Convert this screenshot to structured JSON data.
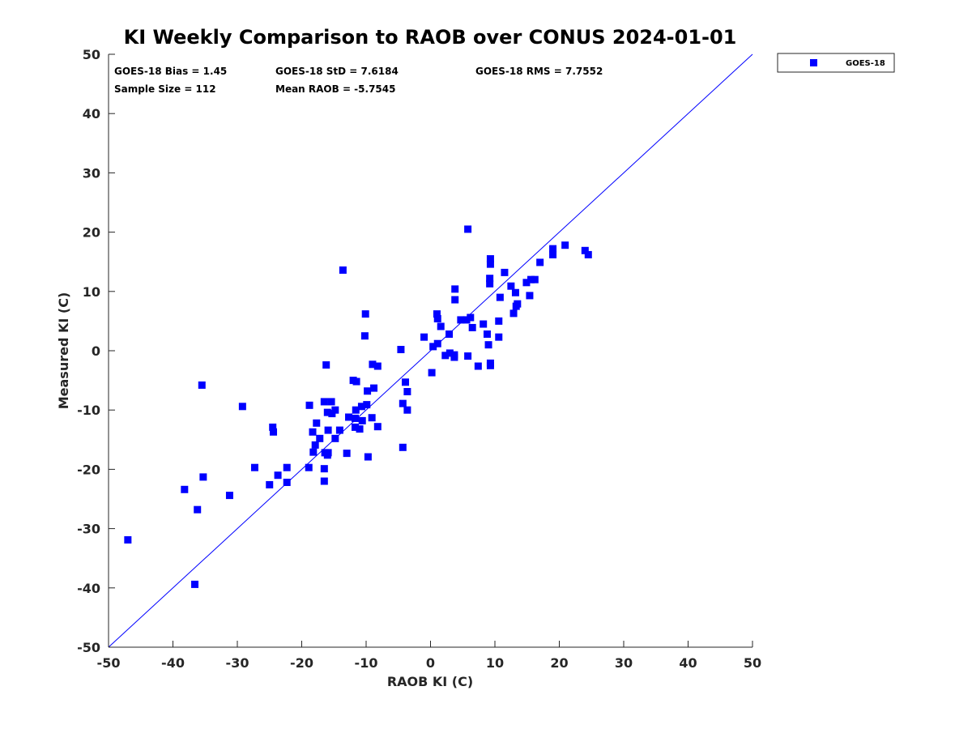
{
  "chart_data": {
    "type": "scatter",
    "title": "KI Weekly Comparison to RAOB over CONUS 2024-01-01",
    "xlabel": "RAOB KI (C)",
    "ylabel": "Measured KI (C)",
    "xlim": [
      -50,
      50
    ],
    "ylim": [
      -50,
      50
    ],
    "xticks": [
      "-50",
      "-40",
      "-30",
      "-20",
      "-10",
      "0",
      "10",
      "20",
      "30",
      "40",
      "50"
    ],
    "yticks": [
      "50",
      "40",
      "30",
      "20",
      "10",
      "0",
      "-10",
      "-20",
      "-30",
      "-40",
      "-50"
    ],
    "grid": false,
    "legend_position": "outside-top-right",
    "stats": {
      "bias": "GOES-18 Bias = 1.45",
      "std": "GOES-18 StD = 7.6184",
      "rms": "GOES-18 RMS = 7.7552",
      "sample": "Sample Size = 112",
      "mean": "Mean RAOB = -5.7545"
    },
    "reference_line": {
      "name": "1:1 line",
      "color": "#0000ff",
      "from": [
        -50,
        -50
      ],
      "to": [
        50,
        50
      ]
    },
    "series": [
      {
        "name": "GOES-18",
        "color": "#0000ff",
        "marker": "square",
        "points": [
          [
            -47,
            -31.9
          ],
          [
            -38.2,
            -23.4
          ],
          [
            -36.2,
            -26.8
          ],
          [
            -36.6,
            -39.4
          ],
          [
            -35.5,
            -5.8
          ],
          [
            -35.3,
            -21.3
          ],
          [
            -31.2,
            -24.4
          ],
          [
            -29.2,
            -9.4
          ],
          [
            -27.3,
            -19.7
          ],
          [
            -25,
            -22.6
          ],
          [
            -24.5,
            -12.9
          ],
          [
            -24.4,
            -13.7
          ],
          [
            -23.7,
            -21
          ],
          [
            -22.3,
            -19.7
          ],
          [
            -22.3,
            -22.2
          ],
          [
            -18.8,
            -9.2
          ],
          [
            -18.9,
            -19.7
          ],
          [
            -18.3,
            -13.7
          ],
          [
            -18.2,
            -17.1
          ],
          [
            -17.9,
            -15.9
          ],
          [
            -17.7,
            -12.2
          ],
          [
            -17.2,
            -14.8
          ],
          [
            -16.5,
            -8.6
          ],
          [
            -16.4,
            -17.2
          ],
          [
            -16.5,
            -19.9
          ],
          [
            -16.5,
            -22
          ],
          [
            -16.2,
            -2.4
          ],
          [
            -16,
            -10.4
          ],
          [
            -15.9,
            -13.4
          ],
          [
            -15.9,
            -17.2
          ],
          [
            -16,
            -17.6
          ],
          [
            -15.4,
            -8.6
          ],
          [
            -15.3,
            -10.6
          ],
          [
            -14.8,
            -10
          ],
          [
            -14.8,
            -14.8
          ],
          [
            -14.1,
            -13.4
          ],
          [
            -13.6,
            13.6
          ],
          [
            -13,
            -17.3
          ],
          [
            -12,
            -5
          ],
          [
            -11.7,
            -11.4
          ],
          [
            -11.7,
            -12.9
          ],
          [
            -11.6,
            -10
          ],
          [
            -11.5,
            -5.2
          ],
          [
            -11,
            -13.2
          ],
          [
            -10.7,
            -9.4
          ],
          [
            -10.6,
            -11.8
          ],
          [
            -10.2,
            2.5
          ],
          [
            -10.1,
            6.2
          ],
          [
            -9.9,
            -9.1
          ],
          [
            -9.8,
            -6.8
          ],
          [
            -9.7,
            -17.9
          ],
          [
            -9.1,
            -11.3
          ],
          [
            -9,
            -2.3
          ],
          [
            -8.8,
            -6.3
          ],
          [
            -8.2,
            -12.8
          ],
          [
            -8.2,
            -2.6
          ],
          [
            -4.6,
            0.2
          ],
          [
            -4.3,
            -8.9
          ],
          [
            -4.3,
            -16.3
          ],
          [
            -3.9,
            -5.3
          ],
          [
            -3.6,
            -6.9
          ],
          [
            -3.6,
            -10
          ],
          [
            -1,
            2.3
          ],
          [
            0.2,
            -3.7
          ],
          [
            0.4,
            0.7
          ],
          [
            1,
            6.2
          ],
          [
            1.1,
            5.4
          ],
          [
            1.1,
            1.2
          ],
          [
            1.6,
            4.1
          ],
          [
            2.3,
            -0.8
          ],
          [
            2.9,
            2.8
          ],
          [
            3,
            -0.4
          ],
          [
            3.7,
            -0.7
          ],
          [
            3.7,
            -1.1
          ],
          [
            3.8,
            10.4
          ],
          [
            3.8,
            8.6
          ],
          [
            4.7,
            5.2
          ],
          [
            5.6,
            5.2
          ],
          [
            5.8,
            20.5
          ],
          [
            5.8,
            -0.9
          ],
          [
            6.2,
            5.6
          ],
          [
            6.5,
            3.9
          ],
          [
            7.4,
            -2.6
          ],
          [
            8.2,
            4.5
          ],
          [
            8.8,
            2.8
          ],
          [
            9,
            1
          ],
          [
            9.2,
            12.2
          ],
          [
            9.2,
            11.3
          ],
          [
            9.3,
            15.5
          ],
          [
            9.3,
            14.6
          ],
          [
            9.3,
            -2.1
          ],
          [
            9.3,
            -2.5
          ],
          [
            10.6,
            2.3
          ],
          [
            10.6,
            5
          ],
          [
            10.8,
            9
          ],
          [
            11.5,
            13.2
          ],
          [
            12.5,
            10.9
          ],
          [
            12.9,
            6.3
          ],
          [
            13.2,
            9.8
          ],
          [
            13.3,
            7.5
          ],
          [
            13.5,
            7.9
          ],
          [
            14.9,
            11.5
          ],
          [
            15.4,
            9.3
          ],
          [
            15.6,
            12
          ],
          [
            16.2,
            12
          ],
          [
            17,
            14.9
          ],
          [
            19,
            17.2
          ],
          [
            19,
            16.2
          ],
          [
            20.9,
            17.8
          ],
          [
            24,
            16.9
          ],
          [
            24.5,
            16.2
          ],
          [
            -12.7,
            -11.2
          ]
        ]
      }
    ]
  }
}
